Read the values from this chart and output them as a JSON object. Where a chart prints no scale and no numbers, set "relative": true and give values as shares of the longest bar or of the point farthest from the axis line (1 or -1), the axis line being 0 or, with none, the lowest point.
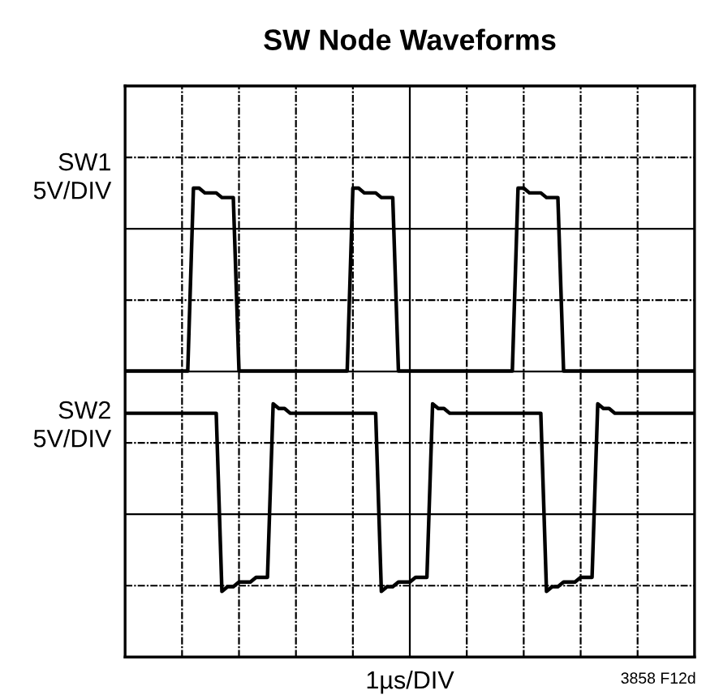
{
  "chart_data": {
    "type": "line",
    "title": "SW Node Waveforms",
    "xlabel": "1µs/DIV",
    "relative": true,
    "grid": true,
    "annotations": [
      "SW1\n5V/DIV",
      "SW2\n5V/DIV",
      "3858 F12d"
    ],
    "categories": [
      null,
      null,
      null,
      null,
      null,
      null,
      null,
      null,
      null,
      null,
      null,
      null,
      null,
      null,
      null,
      null,
      null,
      null,
      null,
      null,
      null,
      null,
      null,
      null,
      null,
      null,
      null,
      null,
      null,
      null,
      null,
      null,
      null,
      null,
      null,
      null,
      null,
      null,
      null,
      null,
      null,
      null,
      null,
      null,
      null,
      null,
      null,
      null,
      null,
      null,
      null,
      null,
      null,
      null,
      null,
      null,
      null,
      null,
      null,
      null,
      null,
      null,
      null,
      null,
      null,
      null,
      null,
      null,
      null,
      null,
      null,
      null,
      null,
      null,
      null,
      null,
      null,
      null,
      null,
      null,
      null,
      null,
      null,
      null,
      null,
      null,
      null,
      null,
      null,
      null,
      null,
      null,
      null,
      null,
      null,
      null,
      null,
      null,
      null,
      null,
      null
    ],
    "series": [
      {
        "color": "#000000",
        "values": [
          0.61,
          0.61,
          0.61,
          0.61,
          0.61,
          0.61,
          0.61,
          0.61,
          0.61,
          0.61,
          0.61,
          0.61,
          1.0,
          1.0,
          0.99,
          0.99,
          0.99,
          0.98,
          0.98,
          0.98,
          0.61,
          0.61,
          0.61,
          0.61,
          0.61,
          0.61,
          0.61,
          0.61,
          0.61,
          0.61,
          0.61,
          0.61,
          0.61,
          0.61,
          0.61,
          0.61,
          0.61,
          0.61,
          0.61,
          0.61,
          1.0,
          1.0,
          0.99,
          0.99,
          0.99,
          0.98,
          0.98,
          0.98,
          0.61,
          0.61,
          0.61,
          0.61,
          0.61,
          0.61,
          0.61,
          0.61,
          0.61,
          0.61,
          0.61,
          0.61,
          0.61,
          0.61,
          0.61,
          0.61,
          0.61,
          0.61,
          0.61,
          0.61,
          0.61,
          1.0,
          1.0,
          0.99,
          0.99,
          0.99,
          0.98,
          0.98,
          0.98,
          0.61,
          0.61,
          0.61,
          0.61,
          0.61,
          0.61,
          0.61,
          0.61,
          0.61,
          0.61,
          0.61,
          0.61,
          0.61,
          0.61,
          0.61,
          0.61,
          0.61,
          0.61,
          0.61,
          0.61,
          0.61,
          0.61,
          0.61,
          0.61
        ]
      },
      {
        "color": "#000000",
        "values": [
          0.52,
          0.52,
          0.52,
          0.52,
          0.52,
          0.52,
          0.52,
          0.52,
          0.52,
          0.52,
          0.52,
          0.52,
          0.52,
          0.52,
          0.52,
          0.52,
          0.52,
          0.14,
          0.15,
          0.15,
          0.16,
          0.16,
          0.16,
          0.17,
          0.17,
          0.17,
          0.54,
          0.53,
          0.53,
          0.52,
          0.52,
          0.52,
          0.52,
          0.52,
          0.52,
          0.52,
          0.52,
          0.52,
          0.52,
          0.52,
          0.52,
          0.52,
          0.52,
          0.52,
          0.52,
          0.14,
          0.15,
          0.15,
          0.16,
          0.16,
          0.16,
          0.17,
          0.17,
          0.17,
          0.54,
          0.53,
          0.53,
          0.52,
          0.52,
          0.52,
          0.52,
          0.52,
          0.52,
          0.52,
          0.52,
          0.52,
          0.52,
          0.52,
          0.52,
          0.52,
          0.52,
          0.52,
          0.52,
          0.52,
          0.14,
          0.15,
          0.15,
          0.16,
          0.16,
          0.16,
          0.17,
          0.17,
          0.17,
          0.54,
          0.53,
          0.53,
          0.52,
          0.52,
          0.52,
          0.52,
          0.52,
          0.52,
          0.52,
          0.52,
          0.52,
          0.52,
          0.52,
          0.52,
          0.52,
          0.52,
          0.52
        ]
      }
    ]
  }
}
